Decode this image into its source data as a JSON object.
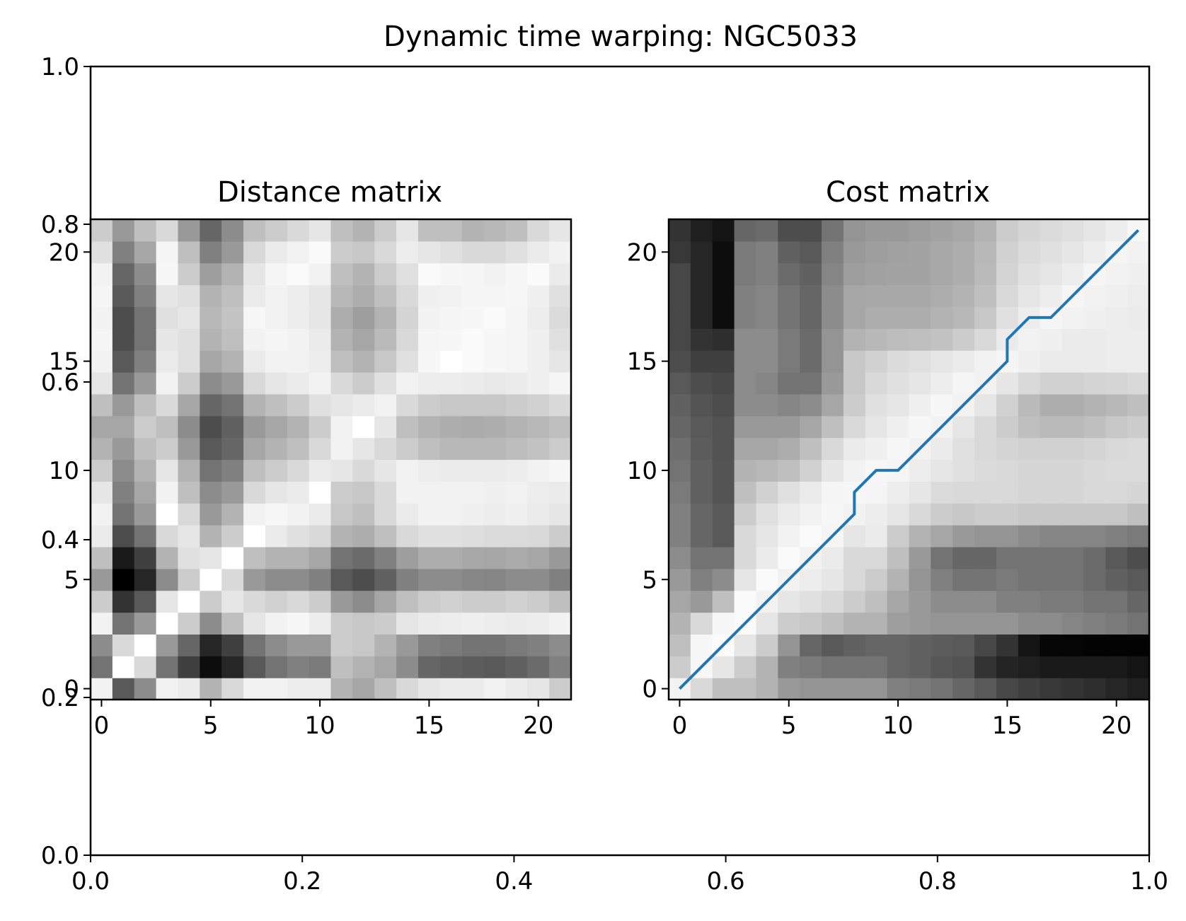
{
  "figure_title": "Dynamic time warping: NGC5033",
  "colors": {
    "path": "#1f77b4",
    "colormap": "gray",
    "axes": "#000000",
    "background": "#ffffff"
  },
  "chart_data": [
    {
      "type": "line",
      "name": "outer-axes",
      "title": "Dynamic time warping: NGC5033",
      "xlim": [
        0,
        1
      ],
      "ylim": [
        0,
        1
      ],
      "xticks": [
        "0.0",
        "0.2",
        "0.4",
        "0.6",
        "0.8",
        "1.0"
      ],
      "yticks": [
        "0.0",
        "0.2",
        "0.4",
        "0.6",
        "0.8",
        "1.0"
      ],
      "grid": false
    },
    {
      "type": "heatmap",
      "title": "Distance matrix",
      "origin": "lower",
      "colormap": "gray",
      "value_range": [
        0,
        1
      ],
      "xlim": [
        -0.5,
        21.5
      ],
      "ylim": [
        -0.5,
        21.5
      ],
      "xticks": [
        "0",
        "5",
        "10",
        "15",
        "20"
      ],
      "yticks": [
        "0",
        "5",
        "10",
        "15",
        "20"
      ],
      "rows": [
        [
          0.95,
          0.35,
          0.55,
          0.95,
          0.92,
          0.7,
          0.85,
          0.95,
          0.95,
          0.93,
          0.93,
          0.7,
          0.65,
          0.75,
          0.85,
          0.9,
          0.92,
          0.92,
          0.95,
          0.92,
          0.9,
          0.8
        ],
        [
          0.45,
          1.0,
          0.85,
          0.45,
          0.25,
          0.05,
          0.15,
          0.35,
          0.45,
          0.5,
          0.48,
          0.75,
          0.7,
          0.65,
          0.55,
          0.4,
          0.38,
          0.36,
          0.35,
          0.38,
          0.42,
          0.5
        ],
        [
          0.55,
          0.85,
          1.0,
          0.6,
          0.4,
          0.15,
          0.25,
          0.45,
          0.55,
          0.6,
          0.6,
          0.8,
          0.78,
          0.7,
          0.6,
          0.5,
          0.48,
          0.45,
          0.45,
          0.48,
          0.5,
          0.55
        ],
        [
          0.95,
          0.45,
          0.6,
          1.0,
          0.8,
          0.55,
          0.75,
          0.9,
          0.95,
          0.97,
          0.93,
          0.8,
          0.78,
          0.8,
          0.9,
          0.92,
          0.93,
          0.94,
          0.93,
          0.92,
          0.93,
          0.95
        ],
        [
          0.8,
          0.2,
          0.35,
          0.9,
          1.0,
          0.8,
          0.9,
          0.85,
          0.82,
          0.85,
          0.8,
          0.6,
          0.55,
          0.65,
          0.75,
          0.8,
          0.82,
          0.8,
          0.8,
          0.82,
          0.8,
          0.75
        ],
        [
          0.6,
          0.0,
          0.15,
          0.55,
          0.8,
          1.0,
          0.85,
          0.6,
          0.55,
          0.55,
          0.5,
          0.35,
          0.3,
          0.38,
          0.5,
          0.55,
          0.55,
          0.53,
          0.52,
          0.55,
          0.55,
          0.5
        ],
        [
          0.75,
          0.1,
          0.25,
          0.7,
          0.88,
          0.9,
          1.0,
          0.75,
          0.7,
          0.7,
          0.65,
          0.45,
          0.42,
          0.5,
          0.62,
          0.68,
          0.68,
          0.66,
          0.65,
          0.67,
          0.65,
          0.6
        ],
        [
          0.92,
          0.3,
          0.45,
          0.85,
          0.9,
          0.7,
          0.8,
          1.0,
          0.92,
          0.88,
          0.85,
          0.7,
          0.68,
          0.75,
          0.85,
          0.88,
          0.88,
          0.87,
          0.86,
          0.86,
          0.85,
          0.8
        ],
        [
          0.95,
          0.45,
          0.6,
          1.0,
          0.85,
          0.6,
          0.7,
          0.95,
          0.97,
          0.95,
          0.92,
          0.78,
          0.75,
          0.85,
          0.92,
          0.95,
          0.95,
          0.94,
          0.93,
          0.94,
          0.92,
          0.9
        ],
        [
          0.9,
          0.5,
          0.65,
          0.95,
          0.75,
          0.55,
          0.6,
          0.85,
          0.9,
          0.92,
          1.0,
          0.8,
          0.78,
          0.85,
          0.95,
          0.95,
          0.95,
          0.95,
          0.94,
          0.95,
          0.93,
          0.92
        ],
        [
          0.8,
          0.55,
          0.7,
          0.9,
          0.7,
          0.45,
          0.5,
          0.75,
          0.8,
          0.85,
          0.92,
          0.9,
          0.85,
          0.9,
          0.95,
          0.93,
          0.92,
          0.92,
          0.92,
          0.93,
          0.95,
          0.97
        ],
        [
          0.7,
          0.6,
          0.75,
          0.8,
          0.6,
          0.35,
          0.4,
          0.65,
          0.7,
          0.75,
          0.85,
          0.95,
          0.9,
          0.85,
          0.8,
          0.75,
          0.72,
          0.72,
          0.72,
          0.74,
          0.76,
          0.8
        ],
        [
          0.65,
          0.65,
          0.8,
          0.75,
          0.55,
          0.3,
          0.38,
          0.6,
          0.65,
          0.7,
          0.8,
          0.95,
          1.0,
          0.9,
          0.75,
          0.7,
          0.68,
          0.67,
          0.68,
          0.7,
          0.72,
          0.75
        ],
        [
          0.75,
          0.6,
          0.75,
          0.85,
          0.65,
          0.4,
          0.45,
          0.7,
          0.75,
          0.8,
          0.88,
          0.9,
          0.92,
          0.95,
          0.85,
          0.8,
          0.78,
          0.78,
          0.78,
          0.8,
          0.82,
          0.85
        ],
        [
          0.9,
          0.45,
          0.6,
          0.95,
          0.8,
          0.55,
          0.6,
          0.85,
          0.9,
          0.92,
          0.95,
          0.85,
          0.8,
          0.88,
          0.95,
          0.93,
          0.93,
          0.92,
          0.91,
          0.92,
          0.94,
          0.96
        ],
        [
          0.95,
          0.35,
          0.5,
          0.92,
          0.88,
          0.65,
          0.7,
          0.92,
          0.95,
          0.95,
          0.93,
          0.75,
          0.7,
          0.78,
          0.88,
          0.97,
          1.0,
          0.98,
          0.97,
          0.96,
          0.94,
          0.9
        ],
        [
          0.96,
          0.3,
          0.45,
          0.9,
          0.88,
          0.7,
          0.75,
          0.95,
          0.96,
          0.95,
          0.92,
          0.7,
          0.65,
          0.73,
          0.85,
          0.96,
          0.97,
          0.98,
          0.97,
          0.96,
          0.94,
          0.88
        ],
        [
          0.95,
          0.3,
          0.45,
          0.88,
          0.9,
          0.72,
          0.77,
          0.97,
          0.95,
          0.93,
          0.9,
          0.68,
          0.62,
          0.7,
          0.83,
          0.95,
          0.96,
          0.97,
          0.98,
          0.96,
          0.93,
          0.86
        ],
        [
          0.96,
          0.35,
          0.5,
          0.9,
          0.88,
          0.7,
          0.75,
          0.92,
          0.95,
          0.93,
          0.9,
          0.72,
          0.68,
          0.75,
          0.85,
          0.94,
          0.95,
          0.96,
          0.96,
          0.97,
          0.94,
          0.88
        ],
        [
          0.95,
          0.4,
          0.55,
          0.97,
          0.8,
          0.62,
          0.7,
          0.9,
          0.96,
          0.98,
          0.95,
          0.75,
          0.7,
          0.8,
          0.88,
          0.98,
          0.97,
          0.96,
          0.95,
          0.97,
          0.98,
          0.92
        ],
        [
          0.88,
          0.5,
          0.65,
          0.96,
          0.75,
          0.5,
          0.6,
          0.85,
          0.92,
          0.95,
          0.98,
          0.8,
          0.78,
          0.85,
          0.93,
          0.9,
          0.88,
          0.85,
          0.85,
          0.88,
          0.92,
          0.95
        ],
        [
          0.8,
          0.6,
          0.75,
          0.85,
          0.6,
          0.4,
          0.55,
          0.75,
          0.8,
          0.85,
          0.9,
          0.75,
          0.7,
          0.8,
          0.9,
          0.75,
          0.75,
          0.7,
          0.72,
          0.75,
          0.85,
          0.9
        ]
      ]
    },
    {
      "type": "heatmap",
      "title": "Cost matrix",
      "origin": "lower",
      "colormap": "gray",
      "value_range": [
        0,
        1
      ],
      "xlim": [
        -0.5,
        21.5
      ],
      "ylim": [
        -0.5,
        21.5
      ],
      "xticks": [
        "0",
        "5",
        "10",
        "15",
        "20"
      ],
      "yticks": [
        "0",
        "5",
        "10",
        "15",
        "20"
      ],
      "rows": [
        [
          0.95,
          0.85,
          0.75,
          0.75,
          0.7,
          0.6,
          0.58,
          0.58,
          0.58,
          0.58,
          0.5,
          0.48,
          0.45,
          0.4,
          0.35,
          0.28,
          0.25,
          0.22,
          0.2,
          0.18,
          0.15,
          0.12
        ],
        [
          0.8,
          0.97,
          0.9,
          0.8,
          0.7,
          0.5,
          0.48,
          0.45,
          0.45,
          0.45,
          0.4,
          0.38,
          0.34,
          0.32,
          0.2,
          0.14,
          0.12,
          0.1,
          0.1,
          0.1,
          0.1,
          0.08
        ],
        [
          0.75,
          0.97,
          0.98,
          0.9,
          0.8,
          0.58,
          0.4,
          0.35,
          0.38,
          0.4,
          0.4,
          0.38,
          0.36,
          0.35,
          0.28,
          0.2,
          0.08,
          0.02,
          0.02,
          0.01,
          0.01,
          0.01
        ],
        [
          0.7,
          0.85,
          0.97,
          0.98,
          0.9,
          0.8,
          0.78,
          0.75,
          0.7,
          0.7,
          0.62,
          0.6,
          0.58,
          0.58,
          0.58,
          0.58,
          0.55,
          0.55,
          0.52,
          0.5,
          0.48,
          0.45
        ],
        [
          0.65,
          0.6,
          0.75,
          0.98,
          0.95,
          0.9,
          0.88,
          0.85,
          0.8,
          0.75,
          0.65,
          0.6,
          0.55,
          0.55,
          0.55,
          0.5,
          0.5,
          0.48,
          0.48,
          0.45,
          0.45,
          0.4
        ],
        [
          0.6,
          0.5,
          0.55,
          0.9,
          0.98,
          0.95,
          0.93,
          0.9,
          0.85,
          0.8,
          0.7,
          0.58,
          0.5,
          0.45,
          0.45,
          0.48,
          0.45,
          0.45,
          0.45,
          0.42,
          0.38,
          0.35
        ],
        [
          0.55,
          0.45,
          0.45,
          0.85,
          0.92,
          0.98,
          0.95,
          0.92,
          0.85,
          0.85,
          0.75,
          0.6,
          0.45,
          0.4,
          0.4,
          0.45,
          0.45,
          0.45,
          0.45,
          0.42,
          0.35,
          0.3
        ],
        [
          0.5,
          0.4,
          0.35,
          0.85,
          0.9,
          0.95,
          0.98,
          0.96,
          0.9,
          0.92,
          0.8,
          0.7,
          0.65,
          0.6,
          0.58,
          0.58,
          0.55,
          0.52,
          0.52,
          0.52,
          0.5,
          0.48
        ],
        [
          0.5,
          0.4,
          0.35,
          0.8,
          0.88,
          0.92,
          0.95,
          0.97,
          0.95,
          0.93,
          0.9,
          0.85,
          0.8,
          0.78,
          0.8,
          0.8,
          0.78,
          0.78,
          0.78,
          0.78,
          0.78,
          0.75
        ],
        [
          0.48,
          0.38,
          0.33,
          0.75,
          0.82,
          0.88,
          0.92,
          0.96,
          0.97,
          0.96,
          0.93,
          0.9,
          0.86,
          0.85,
          0.85,
          0.85,
          0.84,
          0.84,
          0.84,
          0.85,
          0.85,
          0.84
        ],
        [
          0.45,
          0.38,
          0.33,
          0.7,
          0.72,
          0.75,
          0.82,
          0.9,
          0.95,
          0.97,
          0.96,
          0.93,
          0.9,
          0.88,
          0.86,
          0.85,
          0.84,
          0.84,
          0.84,
          0.85,
          0.86,
          0.86
        ],
        [
          0.43,
          0.36,
          0.32,
          0.65,
          0.65,
          0.68,
          0.75,
          0.85,
          0.92,
          0.94,
          0.97,
          0.95,
          0.92,
          0.88,
          0.85,
          0.83,
          0.82,
          0.82,
          0.82,
          0.83,
          0.85,
          0.86
        ],
        [
          0.4,
          0.35,
          0.32,
          0.6,
          0.6,
          0.6,
          0.65,
          0.75,
          0.85,
          0.9,
          0.94,
          0.97,
          0.95,
          0.9,
          0.85,
          0.8,
          0.75,
          0.73,
          0.73,
          0.75,
          0.78,
          0.8
        ],
        [
          0.38,
          0.33,
          0.3,
          0.55,
          0.55,
          0.52,
          0.55,
          0.65,
          0.8,
          0.88,
          0.9,
          0.94,
          0.97,
          0.95,
          0.9,
          0.82,
          0.73,
          0.68,
          0.68,
          0.7,
          0.72,
          0.75
        ],
        [
          0.35,
          0.3,
          0.28,
          0.55,
          0.52,
          0.45,
          0.45,
          0.6,
          0.78,
          0.85,
          0.88,
          0.9,
          0.93,
          0.96,
          0.95,
          0.9,
          0.85,
          0.82,
          0.82,
          0.83,
          0.84,
          0.85
        ],
        [
          0.3,
          0.25,
          0.25,
          0.55,
          0.55,
          0.48,
          0.42,
          0.58,
          0.78,
          0.82,
          0.86,
          0.88,
          0.9,
          0.92,
          0.95,
          0.96,
          0.94,
          0.92,
          0.92,
          0.92,
          0.93,
          0.93
        ],
        [
          0.28,
          0.2,
          0.18,
          0.55,
          0.55,
          0.48,
          0.42,
          0.58,
          0.7,
          0.72,
          0.74,
          0.75,
          0.76,
          0.8,
          0.85,
          0.92,
          0.95,
          0.94,
          0.92,
          0.92,
          0.93,
          0.93
        ],
        [
          0.28,
          0.15,
          0.05,
          0.5,
          0.52,
          0.45,
          0.4,
          0.55,
          0.65,
          0.68,
          0.68,
          0.68,
          0.7,
          0.72,
          0.78,
          0.88,
          0.93,
          0.96,
          0.95,
          0.94,
          0.93,
          0.92
        ],
        [
          0.28,
          0.15,
          0.05,
          0.5,
          0.52,
          0.45,
          0.4,
          0.55,
          0.65,
          0.66,
          0.66,
          0.66,
          0.68,
          0.7,
          0.75,
          0.85,
          0.9,
          0.93,
          0.96,
          0.95,
          0.94,
          0.93
        ],
        [
          0.28,
          0.15,
          0.05,
          0.48,
          0.5,
          0.42,
          0.38,
          0.52,
          0.62,
          0.63,
          0.64,
          0.64,
          0.66,
          0.68,
          0.73,
          0.83,
          0.88,
          0.9,
          0.93,
          0.96,
          0.95,
          0.94
        ],
        [
          0.22,
          0.15,
          0.05,
          0.48,
          0.5,
          0.38,
          0.35,
          0.5,
          0.6,
          0.62,
          0.63,
          0.64,
          0.66,
          0.68,
          0.72,
          0.82,
          0.86,
          0.88,
          0.9,
          0.93,
          0.96,
          0.95
        ],
        [
          0.2,
          0.12,
          0.08,
          0.4,
          0.42,
          0.3,
          0.3,
          0.45,
          0.58,
          0.6,
          0.6,
          0.62,
          0.64,
          0.66,
          0.7,
          0.8,
          0.84,
          0.86,
          0.88,
          0.9,
          0.93,
          0.97
        ]
      ],
      "warping_path": {
        "x": [
          0,
          1,
          2,
          3,
          4,
          5,
          6,
          7,
          8,
          8,
          9,
          10,
          11,
          12,
          13,
          14,
          15,
          15,
          16,
          17,
          18,
          19,
          20,
          21
        ],
        "y": [
          0,
          1,
          2,
          3,
          4,
          5,
          6,
          7,
          8,
          9,
          10,
          10,
          11,
          12,
          13,
          14,
          15,
          16,
          17,
          17,
          18,
          19,
          20,
          21
        ]
      }
    }
  ]
}
